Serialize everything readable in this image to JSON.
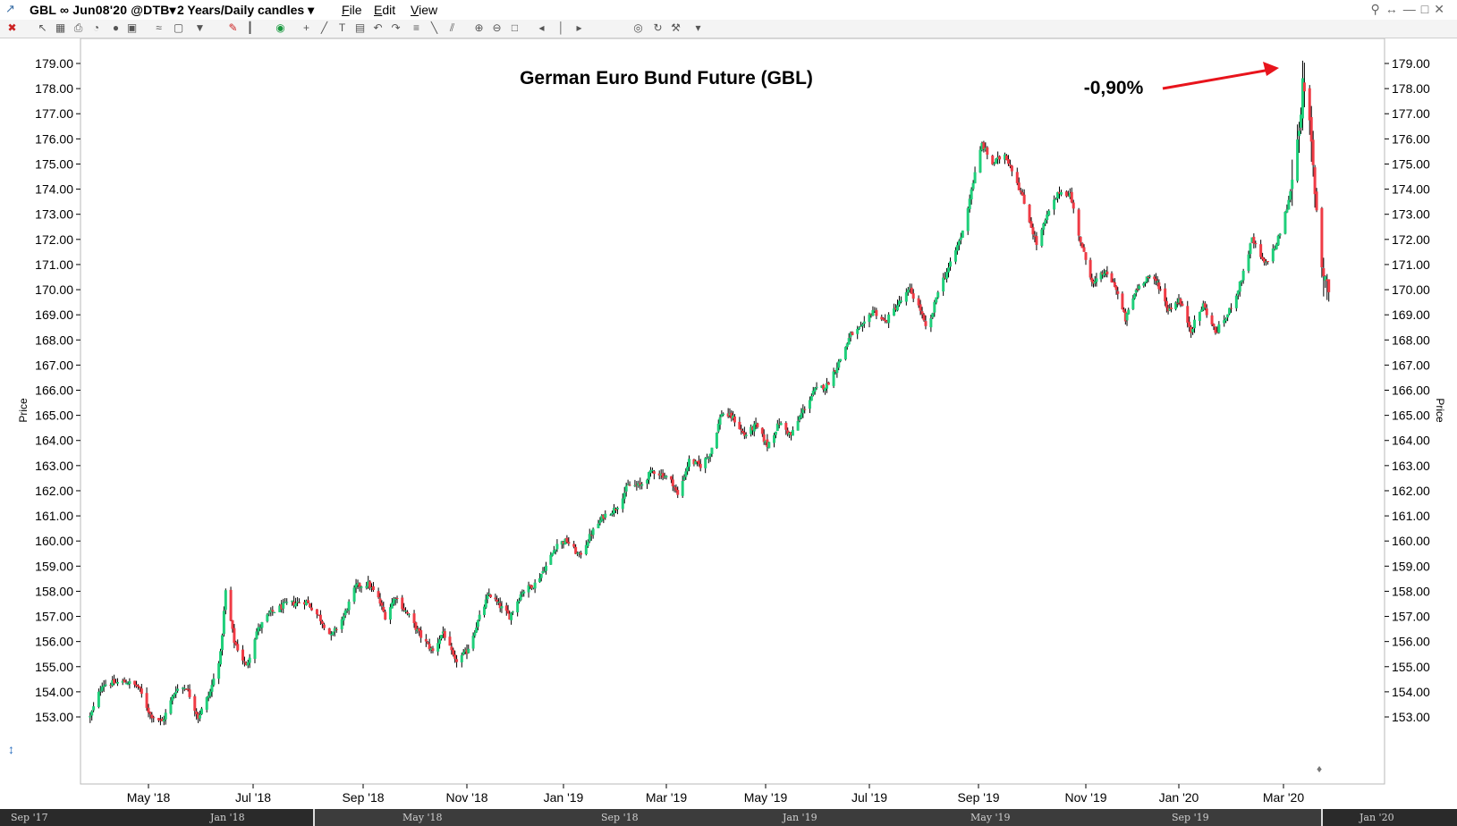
{
  "titlebar": {
    "symbol": "GBL ∞ Jun08'20 @DTB▾",
    "period": "2 Years/Daily candles ▾",
    "menus": [
      "File",
      "Edit",
      "View"
    ]
  },
  "toolbar": {
    "icons": [
      "close-icon",
      "pointer-icon",
      "grid-icon",
      "print-icon",
      "chart-icon",
      "circle-icon",
      "layout-icon",
      "compare-icon",
      "template-icon",
      "arrow-down-icon",
      "draw-icon",
      "bar-type-icon",
      "indicator-icon",
      "crosshair-icon",
      "line-tool-icon",
      "text-icon",
      "label-icon",
      "undo-icon",
      "redo-icon",
      "fib-icon",
      "trendline-icon",
      "channel-icon",
      "zoom-in-icon",
      "zoom-out-icon",
      "fit-icon",
      "scroll-left-icon",
      "scroll-center-icon",
      "scroll-right-icon",
      "globe-icon",
      "refresh-icon",
      "settings-icon",
      "dropdown-icon"
    ]
  },
  "colors": {
    "up": "#1fcf7a",
    "down": "#ef3b45",
    "wick": "#000000",
    "annotation_arrow": "#e8141c"
  },
  "chart_data": {
    "type": "candlestick",
    "title": "German Euro Bund Future (GBL)",
    "annotation": "-0,90%",
    "ylabel": "Price",
    "ylim": [
      152.0,
      179.6
    ],
    "y_ticks": [
      "153.00",
      "154.00",
      "155.00",
      "156.00",
      "157.00",
      "158.00",
      "159.00",
      "160.00",
      "161.00",
      "162.00",
      "163.00",
      "164.00",
      "165.00",
      "166.00",
      "167.00",
      "168.00",
      "169.00",
      "170.00",
      "171.00",
      "172.00",
      "173.00",
      "174.00",
      "175.00",
      "176.00",
      "177.00",
      "178.00",
      "179.00"
    ],
    "x_ticks": [
      "May '18",
      "Jul '18",
      "Sep '18",
      "Nov '18",
      "Jan '19",
      "Mar '19",
      "May '19",
      "Jul '19",
      "Sep '19",
      "Nov '19",
      "Jan '20",
      "Mar '20"
    ],
    "grid": false,
    "series_anchors": [
      [
        "2018-03-28",
        153.0
      ],
      [
        "2018-04-04",
        154.3
      ],
      [
        "2018-04-18",
        154.4
      ],
      [
        "2018-04-25",
        154.2
      ],
      [
        "2018-05-02",
        153.1
      ],
      [
        "2018-05-09",
        152.8
      ],
      [
        "2018-05-17",
        154.1
      ],
      [
        "2018-05-23",
        154.2
      ],
      [
        "2018-05-30",
        153.0
      ],
      [
        "2018-06-06",
        154.0
      ],
      [
        "2018-06-12",
        155.5
      ],
      [
        "2018-06-15",
        158.0
      ],
      [
        "2018-06-20",
        156.0
      ],
      [
        "2018-06-27",
        155.0
      ],
      [
        "2018-07-03",
        156.4
      ],
      [
        "2018-07-10",
        157.1
      ],
      [
        "2018-07-20",
        157.5
      ],
      [
        "2018-07-31",
        157.6
      ],
      [
        "2018-08-07",
        157.0
      ],
      [
        "2018-08-14",
        156.2
      ],
      [
        "2018-08-21",
        157.0
      ],
      [
        "2018-08-28",
        158.2
      ],
      [
        "2018-09-04",
        158.3
      ],
      [
        "2018-09-10",
        157.7
      ],
      [
        "2018-09-14",
        157.0
      ],
      [
        "2018-09-20",
        157.8
      ],
      [
        "2018-09-28",
        157.0
      ],
      [
        "2018-10-05",
        156.2
      ],
      [
        "2018-10-12",
        155.6
      ],
      [
        "2018-10-18",
        156.4
      ],
      [
        "2018-10-25",
        155.2
      ],
      [
        "2018-11-01",
        155.6
      ],
      [
        "2018-11-08",
        156.8
      ],
      [
        "2018-11-15",
        157.9
      ],
      [
        "2018-11-22",
        157.4
      ],
      [
        "2018-11-28",
        157.0
      ],
      [
        "2018-12-06",
        158.0
      ],
      [
        "2018-12-14",
        158.3
      ],
      [
        "2018-12-21",
        159.0
      ],
      [
        "2018-12-28",
        159.9
      ],
      [
        "2019-01-03",
        160.0
      ],
      [
        "2019-01-10",
        159.4
      ],
      [
        "2019-01-17",
        160.3
      ],
      [
        "2019-01-24",
        161.0
      ],
      [
        "2019-01-31",
        161.3
      ],
      [
        "2019-02-07",
        162.2
      ],
      [
        "2019-02-14",
        162.2
      ],
      [
        "2019-02-21",
        162.8
      ],
      [
        "2019-02-28",
        162.6
      ],
      [
        "2019-03-05",
        162.3
      ],
      [
        "2019-03-08",
        161.8
      ],
      [
        "2019-03-15",
        163.2
      ],
      [
        "2019-03-22",
        163.0
      ],
      [
        "2019-03-28",
        163.5
      ],
      [
        "2019-04-04",
        165.1
      ],
      [
        "2019-04-11",
        164.9
      ],
      [
        "2019-04-18",
        164.2
      ],
      [
        "2019-04-25",
        164.6
      ],
      [
        "2019-05-02",
        163.8
      ],
      [
        "2019-05-09",
        164.7
      ],
      [
        "2019-05-16",
        164.2
      ],
      [
        "2019-05-23",
        165.2
      ],
      [
        "2019-05-30",
        166.0
      ],
      [
        "2019-06-06",
        166.2
      ],
      [
        "2019-06-13",
        167.1
      ],
      [
        "2019-06-20",
        168.2
      ],
      [
        "2019-06-27",
        168.5
      ],
      [
        "2019-07-03",
        169.2
      ],
      [
        "2019-07-10",
        168.7
      ],
      [
        "2019-07-17",
        169.4
      ],
      [
        "2019-07-24",
        170.0
      ],
      [
        "2019-07-30",
        169.2
      ],
      [
        "2019-08-03",
        168.2
      ],
      [
        "2019-08-09",
        170.0
      ],
      [
        "2019-08-16",
        171.0
      ],
      [
        "2019-08-23",
        172.3
      ],
      [
        "2019-08-28",
        174.0
      ],
      [
        "2019-09-03",
        175.8
      ],
      [
        "2019-09-09",
        175.0
      ],
      [
        "2019-09-16",
        175.4
      ],
      [
        "2019-09-22",
        174.5
      ],
      [
        "2019-09-29",
        173.0
      ],
      [
        "2019-10-04",
        171.8
      ],
      [
        "2019-10-11",
        173.1
      ],
      [
        "2019-10-17",
        173.9
      ],
      [
        "2019-10-23",
        173.8
      ],
      [
        "2019-10-30",
        171.6
      ],
      [
        "2019-11-06",
        170.2
      ],
      [
        "2019-11-13",
        170.7
      ],
      [
        "2019-11-20",
        170.2
      ],
      [
        "2019-11-27",
        168.8
      ],
      [
        "2019-12-04",
        170.0
      ],
      [
        "2019-12-11",
        170.5
      ],
      [
        "2019-12-18",
        170.3
      ],
      [
        "2019-12-25",
        169.2
      ],
      [
        "2020-01-01",
        169.6
      ],
      [
        "2020-01-08",
        168.4
      ],
      [
        "2020-01-15",
        169.4
      ],
      [
        "2020-01-22",
        168.3
      ],
      [
        "2020-01-29",
        169.0
      ],
      [
        "2020-02-05",
        170.2
      ],
      [
        "2020-02-12",
        172.0
      ],
      [
        "2020-02-19",
        171.0
      ],
      [
        "2020-02-26",
        171.8
      ],
      [
        "2020-03-04",
        173.5
      ],
      [
        "2020-03-09",
        176.0
      ],
      [
        "2020-03-12",
        178.0
      ],
      [
        "2020-03-16",
        176.5
      ],
      [
        "2020-03-19",
        174.0
      ],
      [
        "2020-03-23",
        171.0
      ],
      [
        "2020-03-27",
        170.0
      ]
    ],
    "x_ticks_dates": [
      "2018-05-01",
      "2018-07-01",
      "2018-09-01",
      "2018-11-01",
      "2019-01-01",
      "2019-03-01",
      "2019-05-01",
      "2019-07-01",
      "2019-09-01",
      "2019-11-01",
      "2020-01-01",
      "2020-03-01"
    ],
    "x_range": [
      "2018-03-27",
      "2020-05-15"
    ]
  },
  "overview": {
    "labels": [
      "Sep '17",
      "Jan '18",
      "May '18",
      "Sep '18",
      "Jan '19",
      "May '19",
      "Sep '19",
      "Jan '20"
    ]
  }
}
